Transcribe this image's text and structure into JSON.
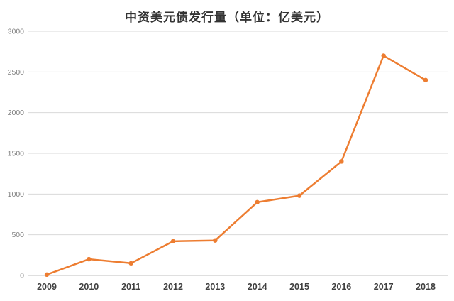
{
  "title": "中资美元债发行量（单位：亿美元）",
  "colors": {
    "line": "#ED7D31",
    "grid": "#D9D9D9",
    "axis": "#BFBFBF",
    "title_text": "#333333",
    "x_label": "#404040",
    "y_label": "#808080",
    "background": "#FFFFFF"
  },
  "chart_data": {
    "type": "line",
    "title": "中资美元债发行量（单位：亿美元）",
    "categories": [
      "2009",
      "2010",
      "2011",
      "2012",
      "2013",
      "2014",
      "2015",
      "2016",
      "2017",
      "2018"
    ],
    "series": [
      {
        "name": "中资美元债发行量",
        "values": [
          10,
          200,
          150,
          420,
          430,
          900,
          980,
          1400,
          2700,
          2400
        ]
      }
    ],
    "xlabel": "",
    "ylabel": "",
    "ylim": [
      0,
      3000
    ],
    "yticks": [
      0,
      500,
      1000,
      1500,
      2000,
      2500,
      3000
    ],
    "grid": "horizontal",
    "legend": "none",
    "marker": "circle",
    "line_color": "#ED7D31"
  }
}
